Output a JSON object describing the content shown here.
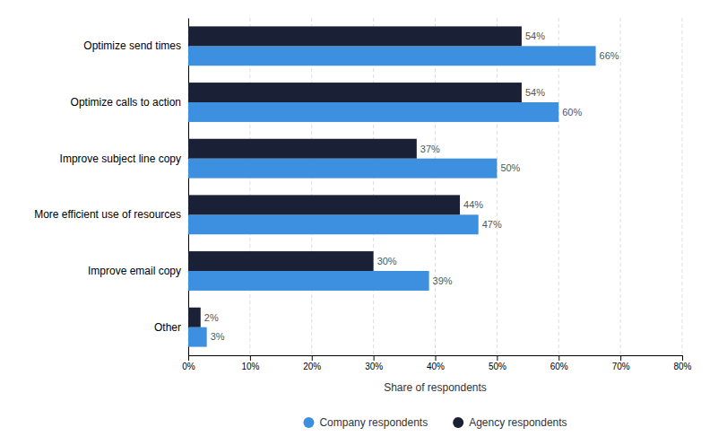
{
  "chart_data": {
    "type": "bar",
    "orientation": "horizontal",
    "categories": [
      "Other",
      "Improve email copy",
      "More efficient use of resources",
      "Improve subject line copy",
      "Optimize calls to action",
      "Optimize send times"
    ],
    "series": [
      {
        "name": "Company respondents",
        "color": "#3d8fe0",
        "values": [
          3,
          39,
          47,
          50,
          60,
          66
        ],
        "value_labels": [
          "3%",
          "39%",
          "47%",
          "50%",
          "60%",
          "66%"
        ]
      },
      {
        "name": "Agency respondents",
        "color": "#1a2035",
        "values": [
          2,
          30,
          44,
          37,
          54,
          54
        ],
        "value_labels": [
          "2%",
          "30%",
          "44%",
          "37%",
          "54%",
          "54%"
        ]
      }
    ],
    "xlabel": "Share of respondents",
    "xlim": [
      0,
      80
    ],
    "xticks": [
      {
        "value": 0,
        "label": "0%"
      },
      {
        "value": 10,
        "label": "10%"
      },
      {
        "value": 20,
        "label": "20%"
      },
      {
        "value": 30,
        "label": "30%"
      },
      {
        "value": 40,
        "label": "40%"
      },
      {
        "value": 50,
        "label": "50%"
      },
      {
        "value": 60,
        "label": "60%"
      },
      {
        "value": 70,
        "label": "70%"
      },
      {
        "value": 80,
        "label": "80%"
      }
    ],
    "grid": true,
    "data_labels": true,
    "legend": "bottom"
  }
}
